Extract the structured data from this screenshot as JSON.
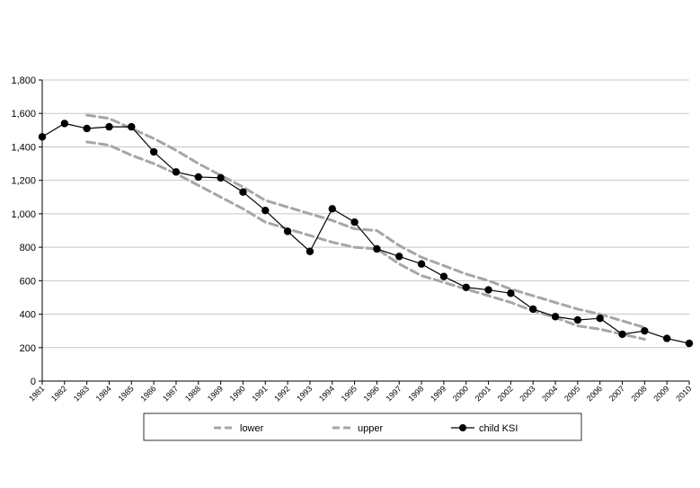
{
  "chart_data": {
    "type": "line",
    "title": "",
    "xlabel": "",
    "ylabel": "",
    "categories": [
      "1981",
      "1982",
      "1983",
      "1984",
      "1985",
      "1986",
      "1987",
      "1988",
      "1989",
      "1990",
      "1991",
      "1992",
      "1993",
      "1994",
      "1995",
      "1996",
      "1997",
      "1998",
      "1999",
      "2000",
      "2001",
      "2002",
      "2003",
      "2004",
      "2005",
      "2006",
      "2007",
      "2008",
      "2009",
      "2010"
    ],
    "ylim": [
      0,
      1800
    ],
    "y_ticks": [
      "0",
      "200",
      "400",
      "600",
      "800",
      "1,000",
      "1,200",
      "1,400",
      "1,600",
      "1,800"
    ],
    "grid": true,
    "legend_position": "bottom",
    "series": [
      {
        "name": "lower",
        "style": "dashed",
        "color": "#a6a6a6",
        "values": [
          null,
          null,
          1430,
          1410,
          1350,
          1300,
          1240,
          1170,
          1100,
          1030,
          950,
          910,
          870,
          830,
          800,
          790,
          700,
          630,
          590,
          550,
          510,
          470,
          420,
          380,
          330,
          310,
          280,
          250,
          null,
          null
        ]
      },
      {
        "name": "upper",
        "style": "dashed",
        "color": "#a6a6a6",
        "values": [
          null,
          null,
          1590,
          1570,
          1510,
          1450,
          1380,
          1300,
          1230,
          1160,
          1080,
          1040,
          1000,
          960,
          910,
          900,
          810,
          740,
          690,
          640,
          600,
          550,
          510,
          470,
          430,
          400,
          360,
          320,
          null,
          null
        ]
      },
      {
        "name": "child KSI",
        "style": "solid-marker",
        "color": "#000000",
        "values": [
          1460,
          1540,
          1510,
          1520,
          1520,
          1370,
          1250,
          1220,
          1215,
          1130,
          1020,
          895,
          775,
          1030,
          950,
          790,
          745,
          700,
          625,
          560,
          545,
          525,
          430,
          385,
          365,
          375,
          280,
          300,
          255,
          225
        ]
      }
    ]
  },
  "legend": {
    "items": [
      {
        "label": "lower"
      },
      {
        "label": "upper"
      },
      {
        "label": "child KSI"
      }
    ]
  }
}
